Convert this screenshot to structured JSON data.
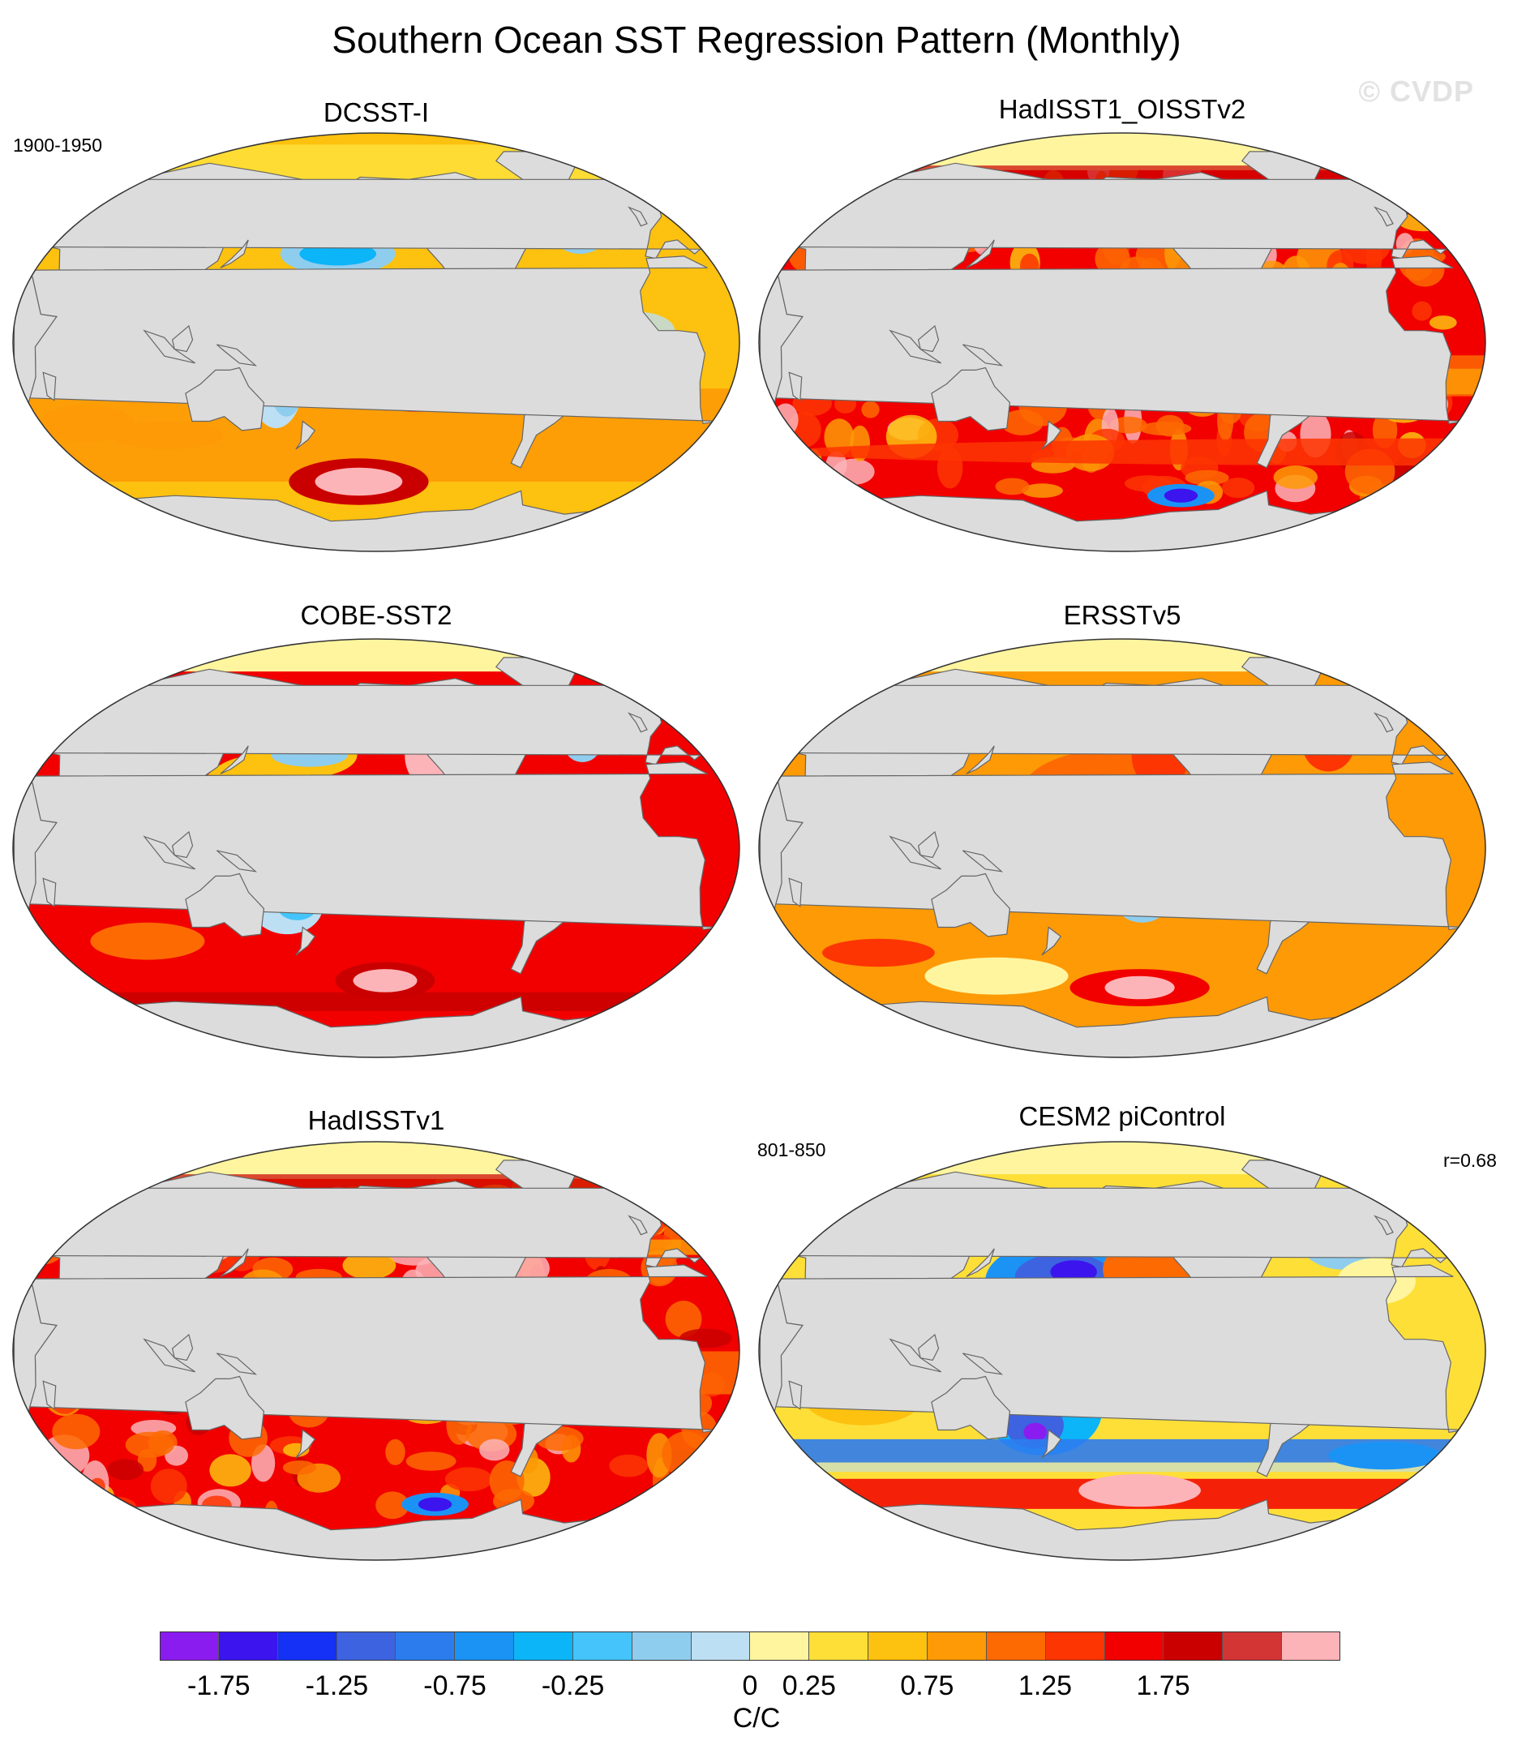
{
  "title": "Southern Ocean SST Regression Pattern (Monthly)",
  "watermark": "© CVDP",
  "period_observations": "1900-1950",
  "period_model": "801-850",
  "correlation_label": "r=0.68",
  "panels": [
    {
      "title": "DCSST-I",
      "pattern": "smooth-warm"
    },
    {
      "title": "HadISST1_OISSTv2",
      "pattern": "noisy-hot-cool-band"
    },
    {
      "title": "COBE-SST2",
      "pattern": "smooth-hot"
    },
    {
      "title": "ERSSTv5",
      "pattern": "blocky-warm"
    },
    {
      "title": "HadISSTv1",
      "pattern": "noisy-hot-cool-band"
    },
    {
      "title": "CESM2 piControl",
      "pattern": "model-dipole"
    }
  ],
  "colorbar": {
    "colors": [
      "#8b1cf0",
      "#3c14ee",
      "#1431f5",
      "#3d63e0",
      "#2c7cee",
      "#1b93f5",
      "#0cb4f8",
      "#44c4fa",
      "#8fcdee",
      "#bcdff3",
      "#fff59f",
      "#fedf38",
      "#fdc10f",
      "#fd9a06",
      "#fd6a02",
      "#fd3502",
      "#f20000",
      "#ca0000",
      "#d33535",
      "#fcb4b8"
    ],
    "tick_labels": [
      "-1.75",
      "-1.25",
      "-0.75",
      "-0.25",
      "0",
      "0.25",
      "0.75",
      "1.25",
      "1.75"
    ],
    "unit": "C/C"
  },
  "map_colors": {
    "land": "#dcdcdc",
    "coast": "#666666"
  }
}
